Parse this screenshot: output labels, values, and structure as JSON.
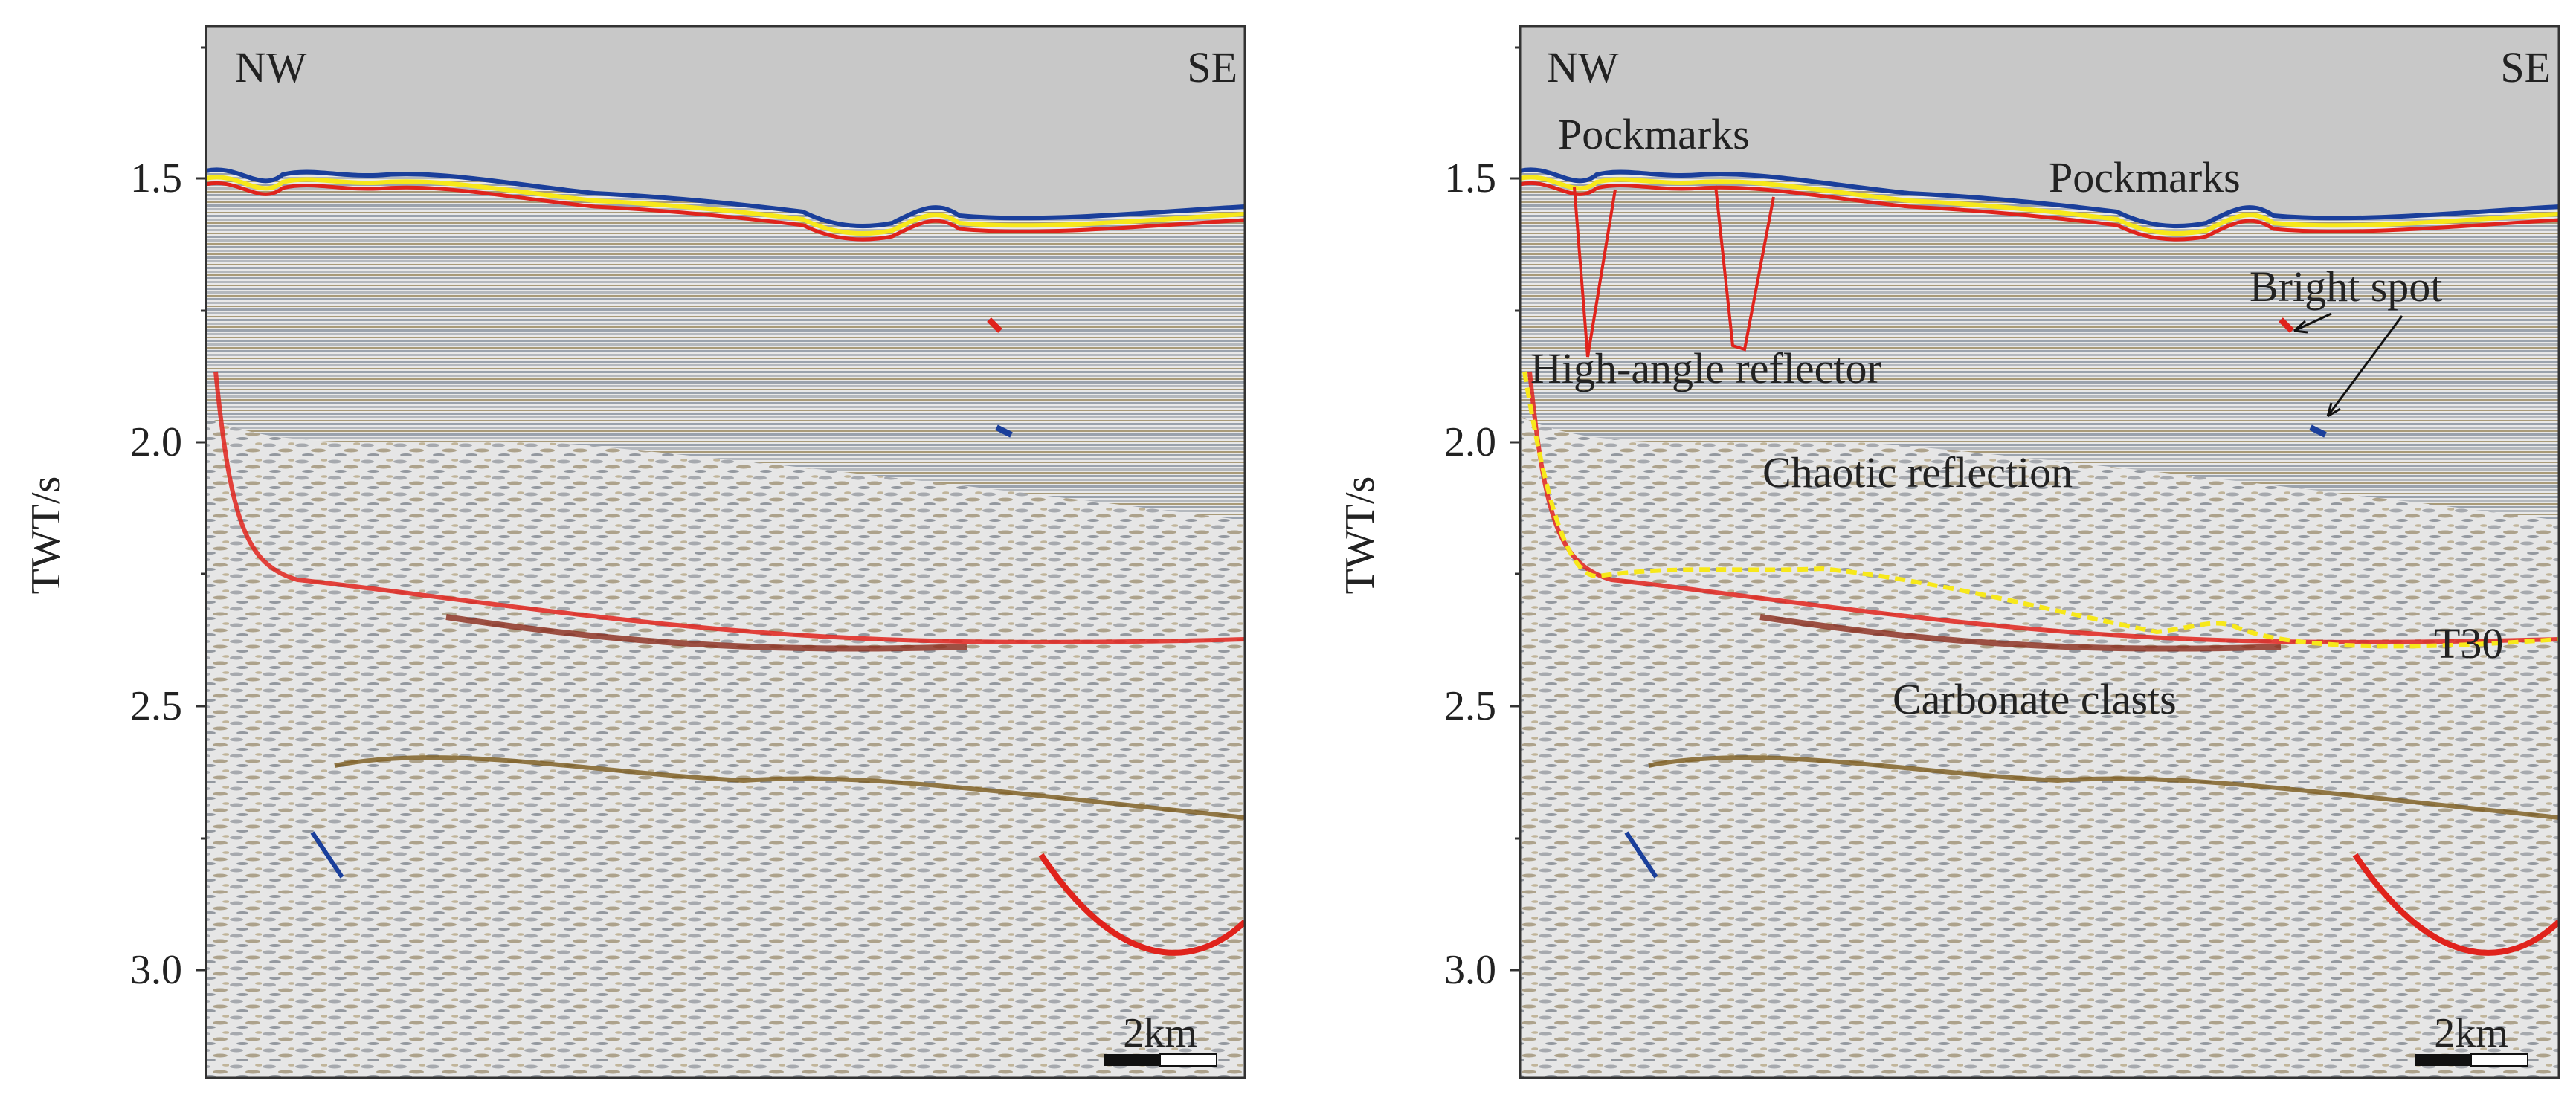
{
  "panels": [
    {
      "id": "left",
      "direction_left": "NW",
      "direction_right": "SE",
      "y_axis_label": "TWT/s",
      "y_ticks": [
        "1.5",
        "2.0",
        "2.5",
        "3.0"
      ],
      "scale_bar_label": "2km",
      "annotations": []
    },
    {
      "id": "right",
      "direction_left": "NW",
      "direction_right": "SE",
      "y_axis_label": "TWT/s",
      "y_ticks": [
        "1.5",
        "2.0",
        "2.5",
        "3.0"
      ],
      "scale_bar_label": "2km",
      "annotations": [
        {
          "name": "pockmarks-label-1",
          "text": "Pockmarks"
        },
        {
          "name": "pockmarks-label-2",
          "text": "Pockmarks"
        },
        {
          "name": "bright-spot-label",
          "text": "Bright spot"
        },
        {
          "name": "high-angle-reflector-label",
          "text": "High-angle reflector"
        },
        {
          "name": "chaotic-reflection-label",
          "text": "Chaotic reflection"
        },
        {
          "name": "carbonate-clasts-label",
          "text": "Carbonate clasts"
        },
        {
          "name": "t30-horizon-label",
          "text": "T30"
        }
      ]
    }
  ],
  "colors": {
    "background_gray": "#c8c8c8",
    "red_reflector": "#e0231c",
    "yellow_horizon": "#f7e81a",
    "blue_reflector": "#1a3f9b",
    "brown_reflector": "#7a5a1c"
  }
}
